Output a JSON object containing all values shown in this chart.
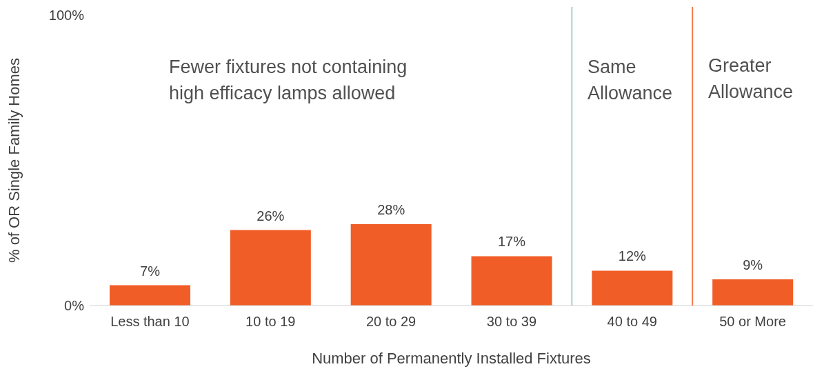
{
  "chart_data": {
    "type": "bar",
    "xlabel": "Number of Permanently Installed Fixtures",
    "ylabel": "% of OR Single Family Homes",
    "categories": [
      "Less than 10",
      "10 to 19",
      "20 to 29",
      "30 to 39",
      "40 to 49",
      "50 or More"
    ],
    "values": [
      7,
      26,
      28,
      17,
      12,
      9
    ],
    "value_labels": [
      "7%",
      "26%",
      "28%",
      "17%",
      "12%",
      "9%"
    ],
    "color": "#f15d27",
    "ylim": [
      0,
      100
    ],
    "yticks": [
      {
        "value": 0,
        "label": "0%"
      },
      {
        "value": 100,
        "label": "100%"
      }
    ],
    "grid": false,
    "legend": false,
    "ref_lines": [
      {
        "axis": "x",
        "value": "40 to 49",
        "color": "#a9d3c4"
      },
      {
        "axis": "x",
        "value": "50 or More",
        "color": "#f1774a"
      }
    ],
    "annotations": [
      "Fewer fixtures not containing high efficacy lamps allowed",
      "Same Allowance",
      "Greater Allowance"
    ]
  }
}
